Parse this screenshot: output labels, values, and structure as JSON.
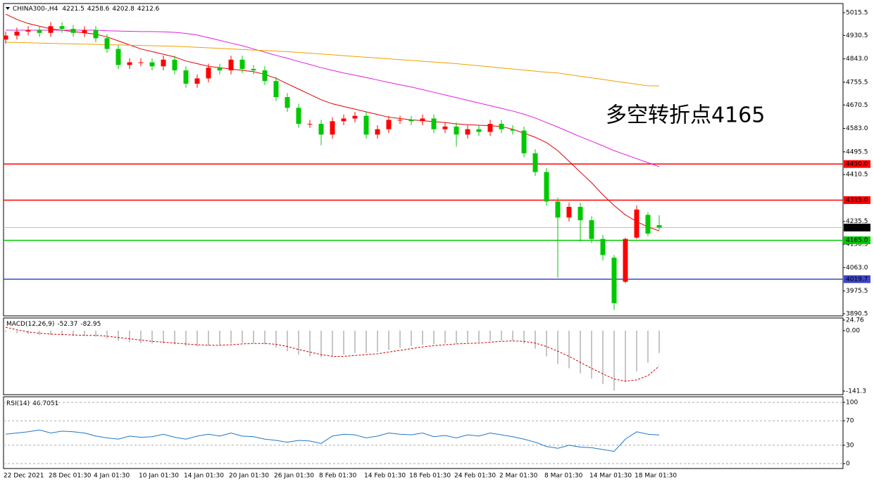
{
  "chart_data": [
    {
      "type": "candlestick",
      "symbol": "CHINA300-,H4",
      "categories": [
        "22 Dec 2021",
        null,
        null,
        null,
        "28 Dec 01:30",
        null,
        null,
        null,
        "4 Jan 01:30",
        null,
        null,
        null,
        "10 Jan 01:30",
        null,
        null,
        null,
        "14 Jan 01:30",
        null,
        null,
        null,
        "20 Jan 01:30",
        null,
        null,
        null,
        "26 Jan 01:30",
        null,
        null,
        null,
        "8 Feb 01:30",
        null,
        null,
        null,
        "14 Feb 01:30",
        null,
        null,
        null,
        "18 Feb 01:30",
        null,
        null,
        null,
        "24 Feb 01:30",
        null,
        null,
        null,
        "2 Mar 01:30",
        null,
        null,
        null,
        "8 Mar 01:30",
        null,
        null,
        null,
        "14 Mar 01:30",
        null,
        null,
        null,
        "18 Mar 01:30",
        null,
        null
      ],
      "open": [
        4915,
        4930,
        4945,
        4950,
        4940,
        4965,
        4955,
        4940,
        4950,
        4920,
        4880,
        4820,
        4830,
        4830,
        4815,
        4840,
        4800,
        4750,
        4770,
        4810,
        4800,
        4840,
        4805,
        4800,
        4760,
        4700,
        4660,
        4600,
        4600,
        4560,
        4610,
        4620,
        4630,
        4560,
        4580,
        4615,
        4615,
        4610,
        4620,
        4580,
        4590,
        4560,
        4580,
        4570,
        4600,
        4580,
        4575,
        4490,
        4420,
        4310,
        4250,
        4290,
        4240,
        4170,
        4100,
        4010,
        4175,
        4260,
        4221.5
      ],
      "high": [
        4945,
        4960,
        4965,
        4965,
        4980,
        4980,
        4970,
        4965,
        4965,
        4935,
        4895,
        4845,
        4845,
        4845,
        4855,
        4855,
        4815,
        4785,
        4825,
        4825,
        4855,
        4855,
        4820,
        4815,
        4775,
        4715,
        4675,
        4615,
        4615,
        4625,
        4635,
        4645,
        4645,
        4595,
        4630,
        4630,
        4630,
        4635,
        4635,
        4605,
        4605,
        4595,
        4595,
        4615,
        4615,
        4595,
        4590,
        4505,
        4435,
        4325,
        4305,
        4305,
        4255,
        4185,
        4110,
        4175,
        4295,
        4270,
        4258.6
      ],
      "low": [
        4900,
        4915,
        4930,
        4925,
        4925,
        4940,
        4925,
        4925,
        4905,
        4865,
        4805,
        4805,
        4815,
        4800,
        4800,
        4785,
        4735,
        4735,
        4755,
        4785,
        4785,
        4790,
        4785,
        4745,
        4685,
        4645,
        4585,
        4585,
        4520,
        4545,
        4595,
        4605,
        4545,
        4545,
        4565,
        4600,
        4595,
        4595,
        4565,
        4565,
        4515,
        4545,
        4555,
        4555,
        4565,
        4560,
        4475,
        4405,
        4295,
        4025,
        4235,
        4160,
        4155,
        4090,
        3905,
        4005,
        4170,
        4180,
        4202.8
      ],
      "close": [
        4930,
        4945,
        4950,
        4940,
        4965,
        4955,
        4940,
        4950,
        4920,
        4880,
        4820,
        4830,
        4830,
        4815,
        4840,
        4800,
        4750,
        4770,
        4810,
        4800,
        4840,
        4805,
        4800,
        4760,
        4700,
        4660,
        4600,
        4600,
        4560,
        4610,
        4620,
        4630,
        4560,
        4580,
        4615,
        4615,
        4610,
        4620,
        4580,
        4590,
        4560,
        4580,
        4570,
        4600,
        4580,
        4575,
        4490,
        4420,
        4310,
        4250,
        4290,
        4240,
        4170,
        4110,
        3930,
        4170,
        4280,
        4190,
        4212.6
      ],
      "up_color": "#ff0000",
      "down_color": "#00c800",
      "lines": [
        {
          "color": "#e00000",
          "values": [
            5010,
            4990,
            4975,
            4965,
            4955,
            4950,
            4945,
            4940,
            4935,
            4925,
            4910,
            4895,
            4880,
            4870,
            4860,
            4850,
            4835,
            4825,
            4815,
            4810,
            4805,
            4800,
            4795,
            4785,
            4770,
            4750,
            4730,
            4710,
            4690,
            4675,
            4665,
            4655,
            4645,
            4635,
            4625,
            4620,
            4615,
            4612,
            4608,
            4605,
            4600,
            4597,
            4595,
            4593,
            4590,
            4580,
            4565,
            4550,
            4530,
            4500,
            4460,
            4420,
            4380,
            4335,
            4295,
            4260,
            4235,
            4215,
            4200
          ]
        },
        {
          "color": "#e020e0",
          "values": [
            4950,
            4950,
            4950,
            4950,
            4950,
            4950,
            4950,
            4950,
            4950,
            4948,
            4947,
            4946,
            4945,
            4945,
            4944,
            4942,
            4938,
            4932,
            4922,
            4912,
            4902,
            4892,
            4880,
            4868,
            4856,
            4845,
            4833,
            4822,
            4810,
            4800,
            4790,
            4782,
            4773,
            4764,
            4755,
            4746,
            4738,
            4728,
            4718,
            4708,
            4698,
            4688,
            4678,
            4668,
            4658,
            4648,
            4636,
            4622,
            4605,
            4588,
            4570,
            4552,
            4535,
            4518,
            4500,
            4485,
            4470,
            4455,
            4440
          ]
        },
        {
          "color": "#f0a000",
          "values": [
            4905,
            4904,
            4903,
            4902,
            4901,
            4900,
            4899,
            4898,
            4897,
            4896,
            4895,
            4894,
            4893,
            4892,
            4891,
            4890,
            4888,
            4886,
            4884,
            4882,
            4880,
            4878,
            4876,
            4874,
            4872,
            4870,
            4867,
            4864,
            4861,
            4858,
            4855,
            4852,
            4849,
            4846,
            4843,
            4840,
            4837,
            4834,
            4831,
            4828,
            4825,
            4821,
            4817,
            4813,
            4809,
            4805,
            4801,
            4797,
            4793,
            4790,
            4784,
            4778,
            4772,
            4766,
            4760,
            4754,
            4748,
            4742,
            4742
          ]
        }
      ],
      "ylim": [
        3882.6,
        5049.7
      ],
      "yticks": [
        5015.5,
        4930.5,
        {
          "value": 4843,
          "label": "4843.0"
        },
        4755.5,
        4670.5,
        {
          "value": 4583,
          "label": "4583.0"
        },
        4495.5,
        4410.5,
        4235.5,
        4150.5,
        {
          "value": 4063,
          "label": "4063.0"
        },
        3975.5,
        3890.5
      ],
      "levels": [
        {
          "value": 4450,
          "label": "4450.0",
          "color": "#ff0000"
        },
        {
          "value": 4315,
          "label": "4315.0",
          "color": "#ff0000"
        },
        {
          "value": 4165,
          "label": "4165.0",
          "color": "#00c800"
        },
        {
          "value": 4019.7,
          "label": "4019.7",
          "color": "#3c46c8"
        }
      ],
      "annotation": "多空转折点4165",
      "annotation_color": "#ff0000"
    },
    {
      "type": "macd",
      "title": "MACD(12,26,9)",
      "histogram": [
        -3,
        -6,
        -8,
        -10,
        -10,
        -11,
        -12,
        -12,
        -14,
        -18,
        -24,
        -27,
        -29,
        -30,
        -30,
        -32,
        -36,
        -37,
        -35,
        -34,
        -30,
        -29,
        -29,
        -32,
        -40,
        -48,
        -56,
        -60,
        -62,
        -60,
        -56,
        -52,
        -52,
        -50,
        -45,
        -40,
        -36,
        -33,
        -32,
        -30,
        -30,
        -28,
        -27,
        -24,
        -23,
        -23,
        -30,
        -42,
        -60,
        -78,
        -88,
        -100,
        -112,
        -125,
        -140,
        -120,
        -95,
        -75,
        -52.37
      ],
      "signal": [
        8,
        2,
        -3,
        -6,
        -8,
        -9,
        -10,
        -11,
        -11,
        -13,
        -16,
        -19,
        -22,
        -25,
        -27,
        -29,
        -31,
        -33,
        -34,
        -34,
        -33,
        -31,
        -30,
        -30,
        -32,
        -37,
        -44,
        -50,
        -56,
        -60,
        -60,
        -58,
        -56,
        -54,
        -50,
        -46,
        -42,
        -38,
        -35,
        -33,
        -31,
        -30,
        -29,
        -27,
        -25,
        -24,
        -25,
        -29,
        -37,
        -48,
        -60,
        -74,
        -88,
        -101,
        -113,
        -118,
        -115,
        -105,
        -82.95
      ],
      "histogram_color": "#b4b4b4",
      "signal_color": "#d00000",
      "ylim": [
        -149.5,
        29.6
      ],
      "yticks": [
        24.76,
        {
          "value": 0,
          "label": "0.00"
        },
        -141.3
      ]
    },
    {
      "type": "rsi",
      "title": "RSI(14)",
      "values": [
        48,
        50,
        52,
        55,
        50,
        53,
        52,
        50,
        45,
        42,
        40,
        45,
        43,
        44,
        48,
        43,
        40,
        45,
        48,
        45,
        50,
        45,
        44,
        40,
        38,
        35,
        38,
        37,
        33,
        45,
        48,
        47,
        42,
        45,
        50,
        48,
        47,
        50,
        44,
        46,
        42,
        47,
        45,
        50,
        47,
        44,
        40,
        35,
        28,
        25,
        30,
        27,
        26,
        23,
        20,
        40,
        52,
        48,
        46.7051
      ],
      "color": "#1e78c8",
      "ylim": [
        -8,
        109.2
      ],
      "yticks": [
        100,
        70,
        30,
        0
      ]
    }
  ]
}
